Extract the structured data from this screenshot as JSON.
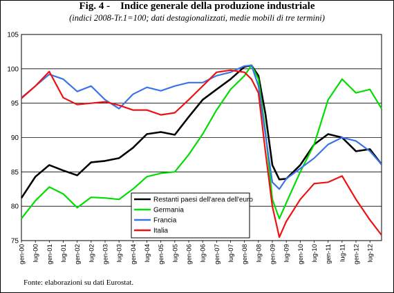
{
  "figure": {
    "title": "Fig. 4 -    Indice generale della produzione industriale",
    "subtitle": "(indici 2008-Tr.1=100; dati destagionalizzati, medie mobili di tre termini)",
    "source": "Fonte: elaborazioni su dati Eurostat."
  },
  "chart_data": {
    "type": "line",
    "title": "Fig. 4 -    Indice generale della produzione industriale",
    "subtitle": "(indici 2008-Tr.1=100; dati destagionalizzati, medie mobili di tre termini)",
    "ylim": [
      75,
      105
    ],
    "yticks": [
      75,
      80,
      85,
      90,
      95,
      100,
      105
    ],
    "grid": "horizontal",
    "legend_position": "bottom-center",
    "x": [
      "2000-01",
      "2000-07",
      "2001-01",
      "2001-07",
      "2002-01",
      "2002-07",
      "2003-01",
      "2003-07",
      "2004-01",
      "2004-07",
      "2005-01",
      "2005-07",
      "2006-01",
      "2006-07",
      "2007-01",
      "2007-07",
      "2008-01",
      "2008-04",
      "2008-07",
      "2008-10",
      "2009-01",
      "2009-04",
      "2009-07",
      "2010-01",
      "2010-07",
      "2011-01",
      "2011-07",
      "2012-01",
      "2012-07",
      "2012-12"
    ],
    "xticks": [
      "gen-00",
      "lug-00",
      "gen-01",
      "lug-01",
      "gen-02",
      "lug-02",
      "gen-03",
      "lug-03",
      "gen-04",
      "lug-04",
      "gen-05",
      "lug-05",
      "gen-06",
      "lug-06",
      "gen-07",
      "lug-07",
      "gen-08",
      "lug-08",
      "gen-09",
      "lug-09",
      "gen-10",
      "lug-10",
      "gen-11",
      "lug-11",
      "gen-12",
      "lug-12"
    ],
    "series": [
      {
        "name": "Restanti paesi dell'area dell'euro",
        "color": "#000000",
        "values": [
          81.2,
          84.3,
          86.0,
          85.2,
          84.5,
          86.4,
          86.6,
          87.0,
          88.5,
          90.5,
          90.8,
          90.4,
          93.0,
          95.5,
          97.0,
          98.5,
          100.3,
          100.5,
          99.0,
          93.5,
          86.0,
          83.9,
          84.0,
          86.0,
          89.0,
          90.5,
          90.0,
          88.0,
          88.3,
          86.1
        ]
      },
      {
        "name": "Germania",
        "color": "#00dd00",
        "values": [
          78.2,
          80.8,
          82.8,
          81.8,
          79.8,
          81.3,
          81.2,
          81.0,
          82.5,
          84.3,
          84.8,
          85.0,
          87.5,
          90.5,
          94.0,
          97.0,
          99.0,
          100.5,
          98.5,
          91.0,
          81.0,
          78.2,
          80.5,
          85.0,
          89.0,
          95.5,
          98.5,
          96.5,
          97.0,
          94.2
        ]
      },
      {
        "name": "Francia",
        "color": "#3a72e8",
        "values": [
          95.8,
          97.5,
          99.2,
          98.5,
          96.7,
          97.5,
          95.5,
          94.2,
          96.3,
          97.3,
          96.8,
          97.5,
          98.0,
          98.0,
          99.0,
          99.5,
          100.4,
          100.5,
          97.5,
          90.5,
          83.5,
          82.5,
          84.0,
          85.5,
          87.0,
          89.0,
          90.0,
          89.5,
          88.0,
          86.1
        ]
      },
      {
        "name": "Italia",
        "color": "#ee1111",
        "values": [
          95.7,
          97.5,
          99.6,
          95.8,
          94.8,
          95.0,
          95.2,
          94.7,
          94.0,
          94.0,
          93.3,
          93.6,
          95.5,
          97.5,
          99.5,
          99.8,
          99.5,
          98.5,
          96.5,
          88.0,
          80.0,
          75.5,
          77.8,
          81.0,
          83.3,
          83.5,
          84.4,
          81.0,
          78.0,
          75.8
        ]
      }
    ]
  }
}
